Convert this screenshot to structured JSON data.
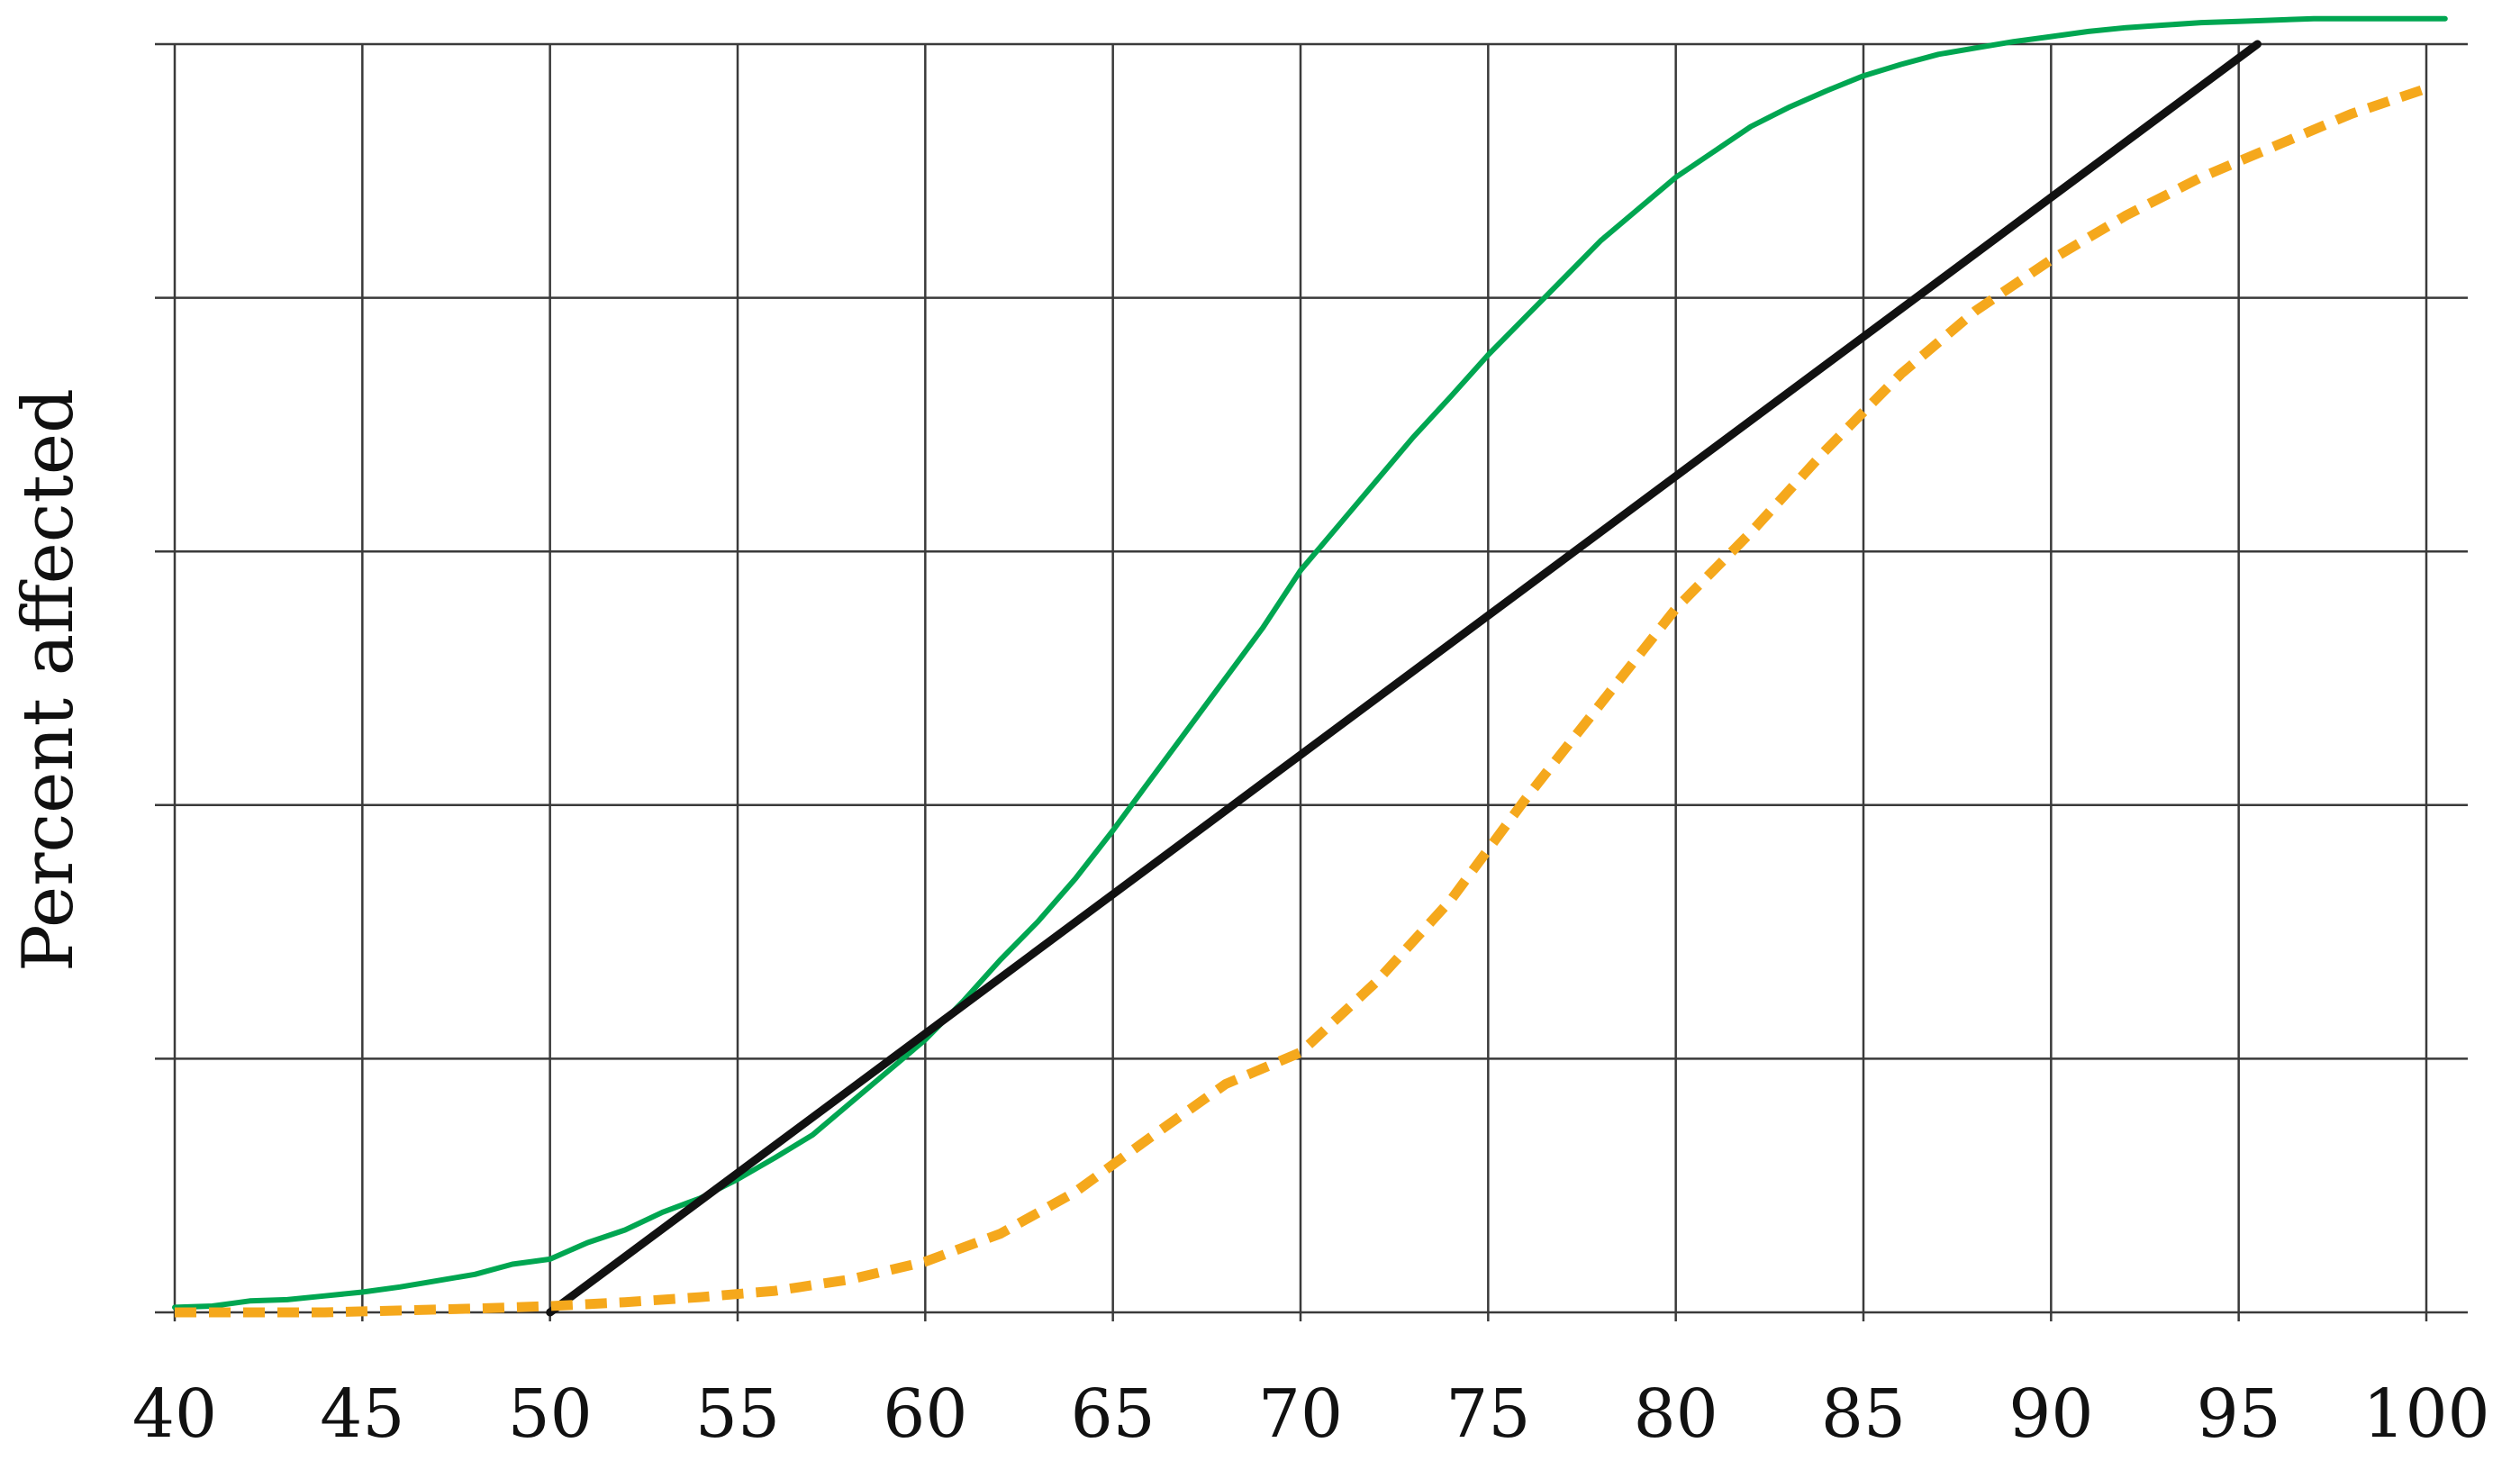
{
  "chart_data": {
    "type": "line",
    "title": "",
    "xlabel": "",
    "ylabel": "Percent affected",
    "xlim": [
      40,
      100
    ],
    "ylim": [
      0,
      100
    ],
    "grid": true,
    "x_ticks": [
      "40",
      "45",
      "50",
      "55",
      "60",
      "65",
      "70",
      "75",
      "80",
      "85",
      "90",
      "95",
      "100"
    ],
    "y_gridlines": [
      0,
      20,
      40,
      60,
      80,
      100
    ],
    "series": [
      {
        "style": "solid",
        "color": "#00a651",
        "x": [
          40,
          41,
          42,
          43,
          44,
          45,
          46,
          47,
          48,
          49,
          50,
          51,
          52,
          53,
          54,
          55,
          56,
          57,
          58,
          59,
          60,
          61,
          62,
          63,
          64,
          65,
          66,
          67,
          68,
          69,
          70,
          71,
          72,
          73,
          74,
          75,
          76,
          77,
          78,
          79,
          80,
          81,
          82,
          83,
          84,
          85,
          86,
          87,
          88,
          89,
          90,
          91,
          92,
          93,
          94,
          95,
          96,
          97,
          98,
          99,
          100,
          100.5
        ],
        "values": [
          0.4,
          0.5,
          0.9,
          1.0,
          1.3,
          1.6,
          2.0,
          2.5,
          3.0,
          3.8,
          4.2,
          5.5,
          6.5,
          7.9,
          9.0,
          10.5,
          12.2,
          14.0,
          16.5,
          19.0,
          21.5,
          24.5,
          27.8,
          30.8,
          34.2,
          38.0,
          42.0,
          46.0,
          50.0,
          54.0,
          58.5,
          62.0,
          65.5,
          69.0,
          72.2,
          75.5,
          78.5,
          81.5,
          84.5,
          87.0,
          89.5,
          91.5,
          93.5,
          95.0,
          96.3,
          97.5,
          98.4,
          99.2,
          99.7,
          100.2,
          100.6,
          101.0,
          101.3,
          101.5,
          101.7,
          101.8,
          101.9,
          102.0,
          102.0,
          102.0,
          102.0,
          102.0
        ]
      },
      {
        "style": "solid",
        "color": "#111111",
        "x": [
          50,
          95.5
        ],
        "values": [
          0,
          100
        ]
      },
      {
        "style": "dashed",
        "color": "#f5a81c",
        "x": [
          40,
          44,
          48,
          50,
          52,
          54,
          56,
          58,
          60,
          62,
          64,
          66,
          68,
          70,
          72,
          74,
          76,
          78,
          80,
          82,
          84,
          86,
          88,
          90,
          92,
          94,
          96,
          98,
          100
        ],
        "values": [
          0.0,
          0.0,
          0.3,
          0.5,
          0.8,
          1.2,
          1.7,
          2.6,
          4.0,
          6.2,
          9.5,
          13.8,
          18.0,
          20.5,
          26.0,
          32.5,
          40.5,
          48.0,
          55.5,
          61.5,
          68.0,
          74.0,
          79.0,
          83.0,
          86.5,
          89.5,
          92.0,
          94.5,
          96.5
        ]
      }
    ]
  }
}
